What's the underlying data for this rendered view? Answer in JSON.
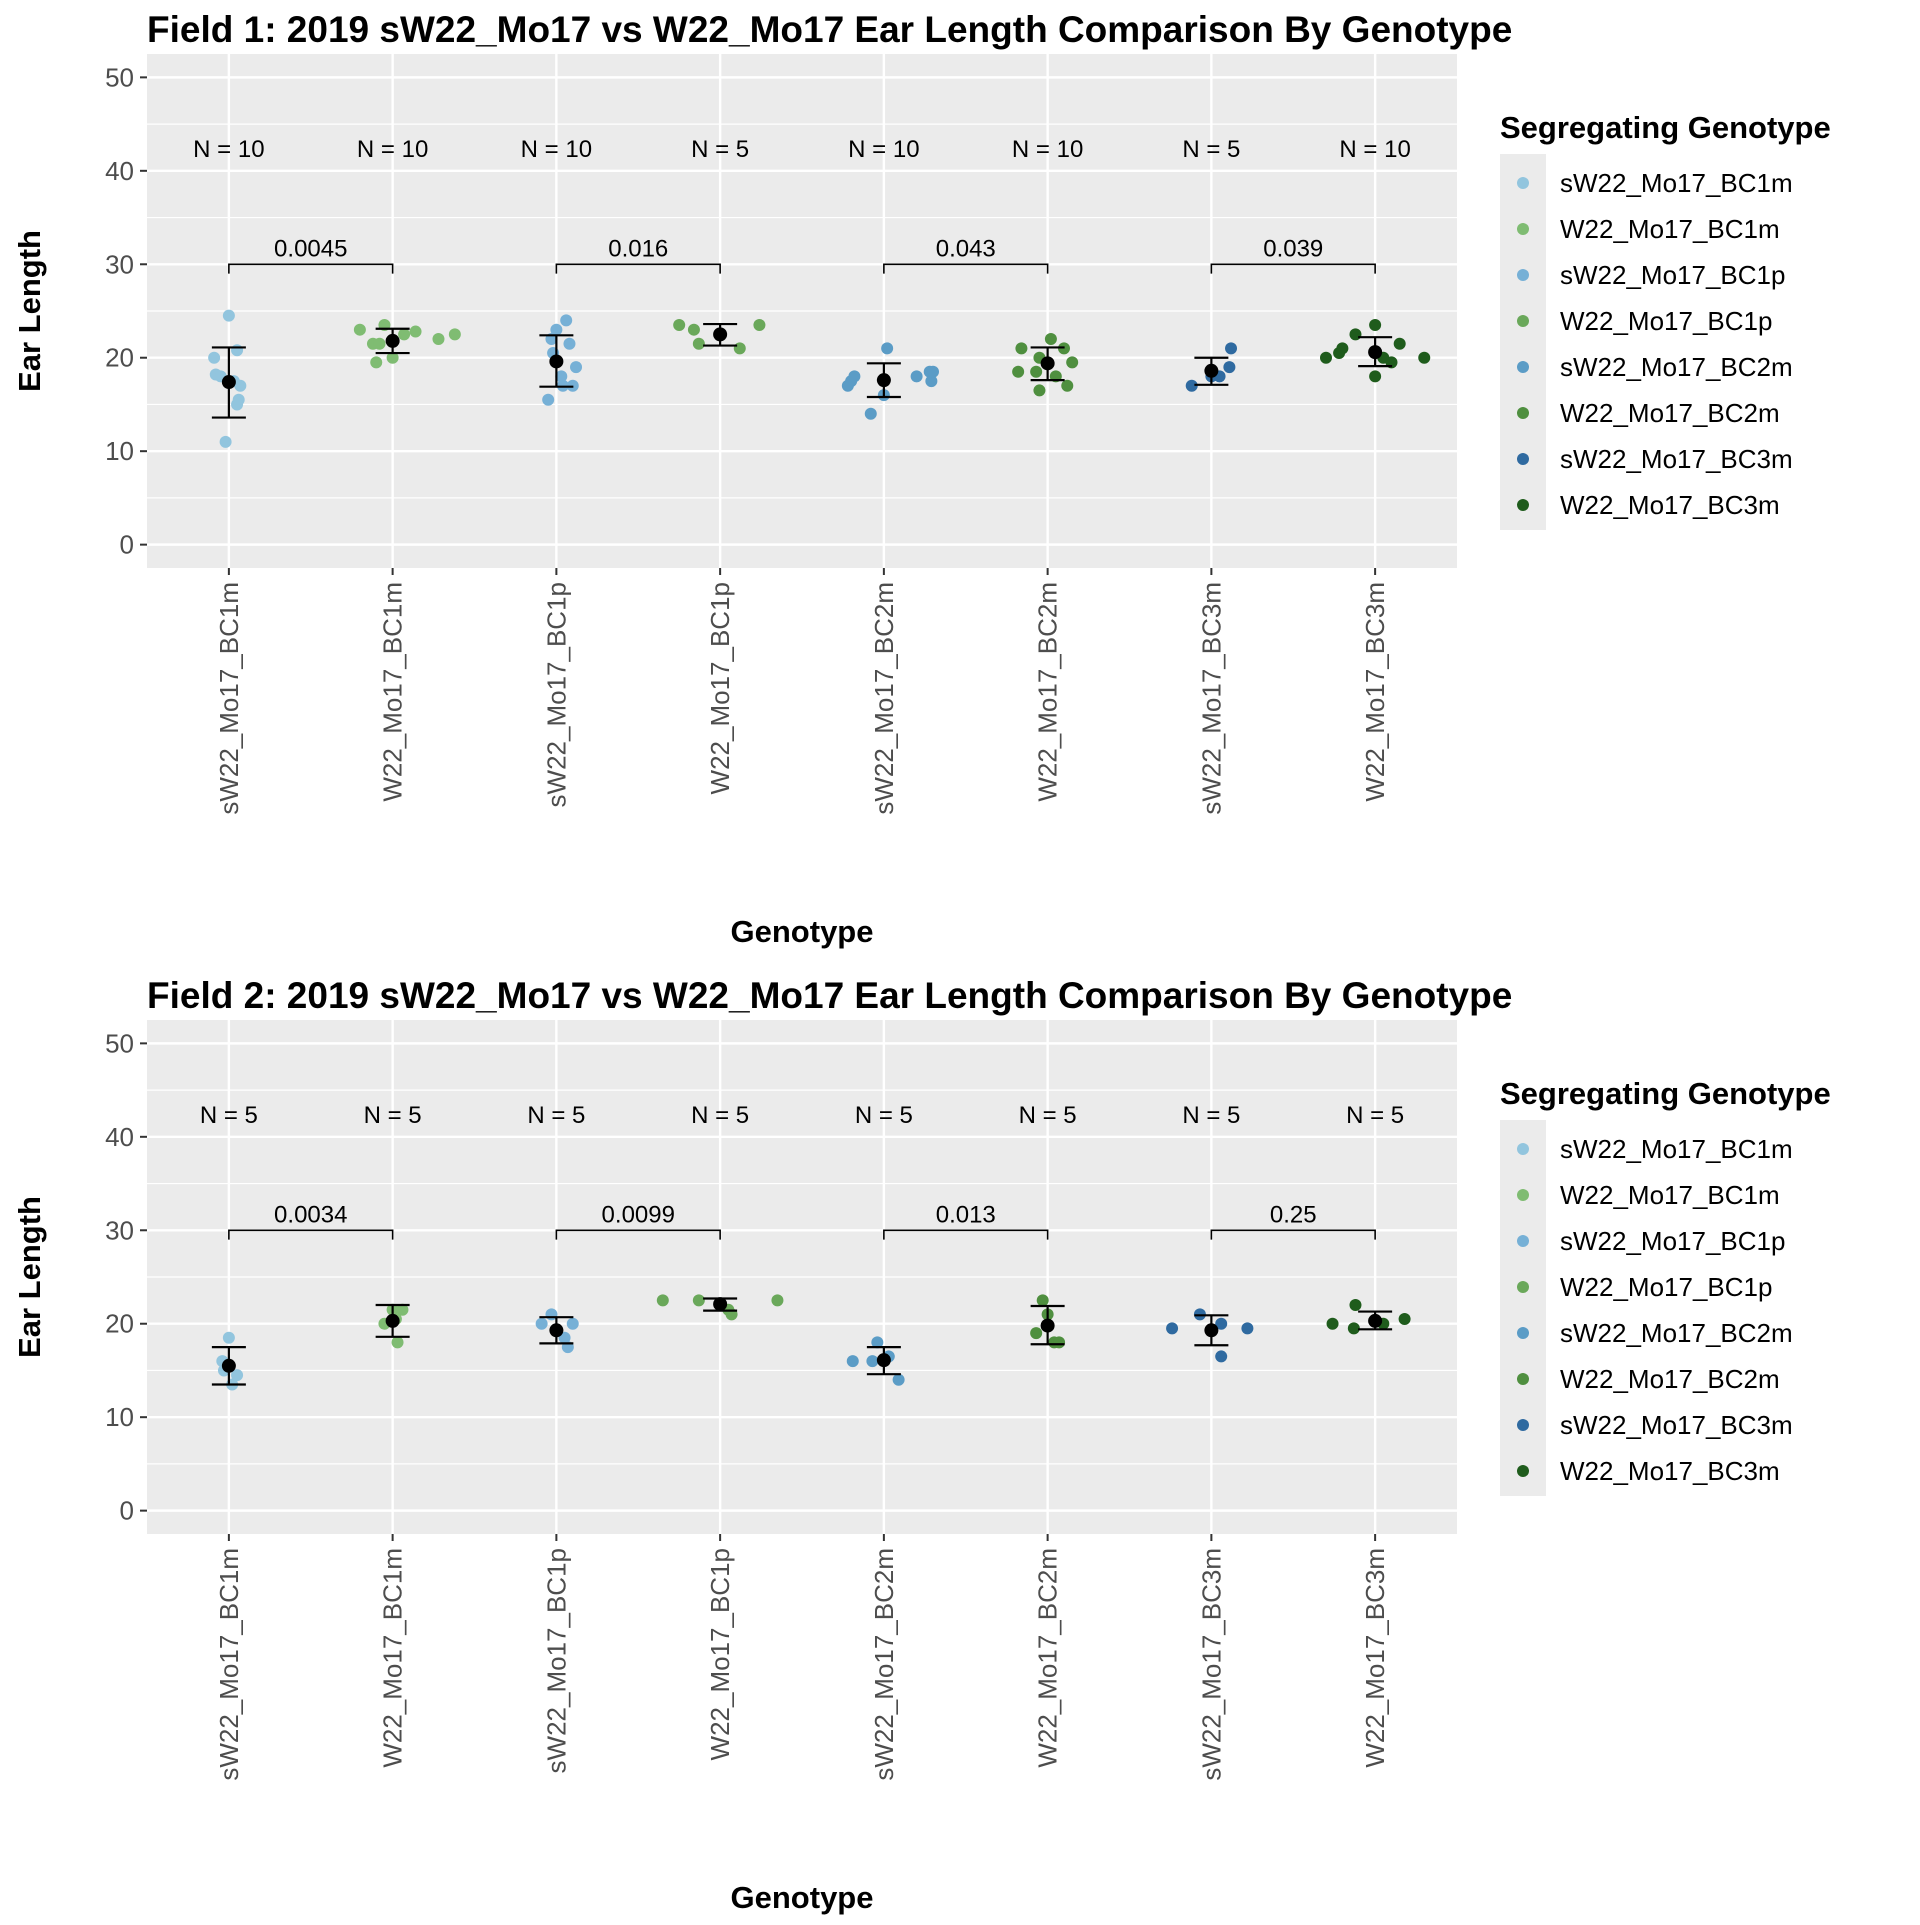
{
  "chart_data": [
    {
      "type": "scatter",
      "title": "Field 1: 2019 sW22_Mo17 vs W22_Mo17 Ear Length Comparison By Genotype",
      "xlabel": "Genotype",
      "ylabel": "Ear Length",
      "ylim": [
        -2.5,
        52.5
      ],
      "yticks": [
        0,
        10,
        20,
        30,
        40,
        50
      ],
      "grid": true,
      "legend": {
        "title": "Segregating Genotype",
        "position": "right"
      },
      "categories": [
        "sW22_Mo17_BC1m",
        "W22_Mo17_BC1m",
        "sW22_Mo17_BC1p",
        "W22_Mo17_BC1p",
        "sW22_Mo17_BC2m",
        "W22_Mo17_BC2m",
        "sW22_Mo17_BC3m",
        "W22_Mo17_BC3m"
      ],
      "n_labels": [
        "N = 10",
        "N = 10",
        "N = 10",
        "N = 5",
        "N = 10",
        "N = 10",
        "N = 5",
        "N = 10"
      ],
      "series": [
        {
          "name": "sW22_Mo17_BC1m",
          "color": "#92c5de",
          "mean": 17.4,
          "lower": 13.6,
          "upper": 21.1,
          "points": [
            [
              -0.09,
              20.0
            ],
            [
              -0.08,
              18.2
            ],
            [
              0.06,
              15.5
            ],
            [
              0.05,
              15.0
            ],
            [
              0.07,
              17.0
            ],
            [
              0.0,
              24.5
            ],
            [
              0.05,
              20.8
            ],
            [
              -0.02,
              11.0
            ],
            [
              0.03,
              17.5
            ],
            [
              -0.05,
              18.0
            ]
          ]
        },
        {
          "name": "W22_Mo17_BC1m",
          "color": "#7fbc72",
          "mean": 21.8,
          "lower": 20.5,
          "upper": 23.1,
          "points": [
            [
              -0.2,
              23.0
            ],
            [
              -0.12,
              21.5
            ],
            [
              -0.1,
              19.5
            ],
            [
              -0.05,
              23.5
            ],
            [
              0.0,
              20.0
            ],
            [
              0.07,
              22.5
            ],
            [
              0.14,
              22.8
            ],
            [
              0.28,
              22.0
            ],
            [
              0.38,
              22.5
            ],
            [
              -0.08,
              21.5
            ]
          ]
        },
        {
          "name": "sW22_Mo17_BC1p",
          "color": "#76b0d6",
          "mean": 19.6,
          "lower": 16.9,
          "upper": 22.4,
          "points": [
            [
              -0.05,
              15.5
            ],
            [
              0.0,
              23.0
            ],
            [
              0.06,
              24.0
            ],
            [
              0.08,
              21.5
            ],
            [
              0.12,
              19.0
            ],
            [
              0.1,
              17.0
            ],
            [
              0.04,
              17.0
            ],
            [
              -0.03,
              22.0
            ],
            [
              0.03,
              18.0
            ],
            [
              -0.02,
              20.5
            ]
          ]
        },
        {
          "name": "W22_Mo17_BC1p",
          "color": "#6aa85a",
          "mean": 22.5,
          "lower": 21.3,
          "upper": 23.6,
          "points": [
            [
              -0.25,
              23.5
            ],
            [
              -0.16,
              23.0
            ],
            [
              -0.13,
              21.5
            ],
            [
              0.12,
              21.0
            ],
            [
              0.24,
              23.5
            ]
          ]
        },
        {
          "name": "sW22_Mo17_BC2m",
          "color": "#5b9cc6",
          "mean": 17.6,
          "lower": 15.8,
          "upper": 19.4,
          "points": [
            [
              -0.22,
              17.0
            ],
            [
              -0.2,
              17.5
            ],
            [
              -0.18,
              18.0
            ],
            [
              -0.08,
              14.0
            ],
            [
              0.0,
              16.0
            ],
            [
              0.02,
              21.0
            ],
            [
              0.2,
              18.0
            ],
            [
              0.28,
              18.5
            ],
            [
              0.29,
              17.5
            ],
            [
              0.3,
              18.5
            ]
          ]
        },
        {
          "name": "W22_Mo17_BC2m",
          "color": "#4f8f3f",
          "mean": 19.4,
          "lower": 17.6,
          "upper": 21.1,
          "points": [
            [
              -0.18,
              18.5
            ],
            [
              -0.16,
              21.0
            ],
            [
              -0.05,
              16.5
            ],
            [
              -0.05,
              20.0
            ],
            [
              -0.07,
              18.5
            ],
            [
              0.02,
              22.0
            ],
            [
              0.05,
              18.0
            ],
            [
              0.1,
              21.0
            ],
            [
              0.12,
              17.0
            ],
            [
              0.15,
              19.5
            ]
          ]
        },
        {
          "name": "sW22_Mo17_BC3m",
          "color": "#2f6aa0",
          "mean": 18.6,
          "lower": 17.1,
          "upper": 20.0,
          "points": [
            [
              -0.12,
              17.0
            ],
            [
              0.0,
              18.0
            ],
            [
              0.05,
              18.0
            ],
            [
              0.11,
              19.0
            ],
            [
              0.12,
              21.0
            ]
          ]
        },
        {
          "name": "W22_Mo17_BC3m",
          "color": "#1f5c1c",
          "mean": 20.6,
          "lower": 19.1,
          "upper": 22.2,
          "points": [
            [
              -0.3,
              20.0
            ],
            [
              -0.22,
              20.5
            ],
            [
              -0.2,
              21.0
            ],
            [
              -0.12,
              22.5
            ],
            [
              0.0,
              18.0
            ],
            [
              0.0,
              23.5
            ],
            [
              0.05,
              20.0
            ],
            [
              0.15,
              21.5
            ],
            [
              0.1,
              19.5
            ],
            [
              0.3,
              20.0
            ]
          ]
        }
      ],
      "comparisons": [
        {
          "from": 0,
          "to": 1,
          "y": 30,
          "label": "0.0045"
        },
        {
          "from": 2,
          "to": 3,
          "y": 30,
          "label": "0.016"
        },
        {
          "from": 4,
          "to": 5,
          "y": 30,
          "label": "0.043"
        },
        {
          "from": 6,
          "to": 7,
          "y": 30,
          "label": "0.039"
        }
      ]
    },
    {
      "type": "scatter",
      "title": "Field 2: 2019 sW22_Mo17 vs W22_Mo17 Ear Length Comparison By Genotype",
      "xlabel": "Genotype",
      "ylabel": "Ear Length",
      "ylim": [
        -2.5,
        52.5
      ],
      "yticks": [
        0,
        10,
        20,
        30,
        40,
        50
      ],
      "grid": true,
      "legend": {
        "title": "Segregating Genotype",
        "position": "right"
      },
      "categories": [
        "sW22_Mo17_BC1m",
        "W22_Mo17_BC1m",
        "sW22_Mo17_BC1p",
        "W22_Mo17_BC1p",
        "sW22_Mo17_BC2m",
        "W22_Mo17_BC2m",
        "sW22_Mo17_BC3m",
        "W22_Mo17_BC3m"
      ],
      "n_labels": [
        "N = 5",
        "N = 5",
        "N = 5",
        "N = 5",
        "N = 5",
        "N = 5",
        "N = 5",
        "N = 5"
      ],
      "series": [
        {
          "name": "sW22_Mo17_BC1m",
          "color": "#92c5de",
          "mean": 15.5,
          "lower": 13.5,
          "upper": 17.5,
          "points": [
            [
              -0.04,
              16.0
            ],
            [
              0.0,
              18.5
            ],
            [
              0.02,
              13.5
            ],
            [
              0.05,
              14.5
            ],
            [
              -0.03,
              15.0
            ]
          ]
        },
        {
          "name": "W22_Mo17_BC1m",
          "color": "#7fbc72",
          "mean": 20.3,
          "lower": 18.6,
          "upper": 22.0,
          "points": [
            [
              -0.05,
              20.0
            ],
            [
              0.0,
              21.5
            ],
            [
              0.03,
              18.0
            ],
            [
              0.06,
              21.5
            ],
            [
              0.02,
              20.5
            ]
          ]
        },
        {
          "name": "sW22_Mo17_BC1p",
          "color": "#76b0d6",
          "mean": 19.3,
          "lower": 17.9,
          "upper": 20.7,
          "points": [
            [
              -0.09,
              20.0
            ],
            [
              -0.03,
              21.0
            ],
            [
              0.05,
              18.5
            ],
            [
              0.07,
              17.5
            ],
            [
              0.1,
              20.0
            ]
          ]
        },
        {
          "name": "W22_Mo17_BC1p",
          "color": "#6aa85a",
          "mean": 22.1,
          "lower": 21.4,
          "upper": 22.7,
          "points": [
            [
              -0.35,
              22.5
            ],
            [
              -0.13,
              22.5
            ],
            [
              0.05,
              21.5
            ],
            [
              0.07,
              21.0
            ],
            [
              0.35,
              22.5
            ]
          ]
        },
        {
          "name": "sW22_Mo17_BC2m",
          "color": "#5b9cc6",
          "mean": 16.1,
          "lower": 14.6,
          "upper": 17.5,
          "points": [
            [
              -0.19,
              16.0
            ],
            [
              -0.07,
              16.0
            ],
            [
              -0.04,
              18.0
            ],
            [
              0.03,
              16.5
            ],
            [
              0.09,
              14.0
            ]
          ]
        },
        {
          "name": "W22_Mo17_BC2m",
          "color": "#4f8f3f",
          "mean": 19.8,
          "lower": 17.8,
          "upper": 21.9,
          "points": [
            [
              -0.07,
              19.0
            ],
            [
              -0.03,
              22.5
            ],
            [
              0.0,
              21.0
            ],
            [
              0.04,
              18.0
            ],
            [
              0.07,
              18.0
            ]
          ]
        },
        {
          "name": "sW22_Mo17_BC3m",
          "color": "#2f6aa0",
          "mean": 19.3,
          "lower": 17.7,
          "upper": 20.9,
          "points": [
            [
              -0.24,
              19.5
            ],
            [
              -0.07,
              21.0
            ],
            [
              0.06,
              20.0
            ],
            [
              0.06,
              16.5
            ],
            [
              0.22,
              19.5
            ]
          ]
        },
        {
          "name": "W22_Mo17_BC3m",
          "color": "#1f5c1c",
          "mean": 20.3,
          "lower": 19.4,
          "upper": 21.3,
          "points": [
            [
              -0.26,
              20.0
            ],
            [
              -0.13,
              19.5
            ],
            [
              -0.12,
              22.0
            ],
            [
              0.05,
              20.0
            ],
            [
              0.18,
              20.5
            ]
          ]
        }
      ],
      "comparisons": [
        {
          "from": 0,
          "to": 1,
          "y": 30,
          "label": "0.0034"
        },
        {
          "from": 2,
          "to": 3,
          "y": 30,
          "label": "0.0099"
        },
        {
          "from": 4,
          "to": 5,
          "y": 30,
          "label": "0.013"
        },
        {
          "from": 6,
          "to": 7,
          "y": 30,
          "label": "0.25"
        }
      ]
    }
  ]
}
